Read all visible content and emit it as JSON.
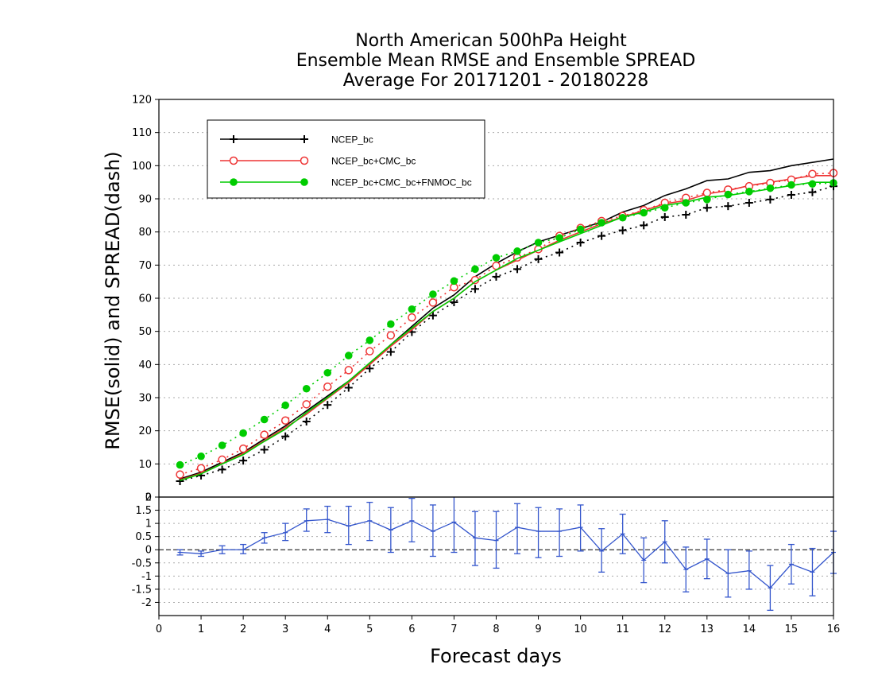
{
  "title_lines": [
    "North American 500hPa Height",
    "Ensemble Mean RMSE and Ensemble SPREAD",
    "Average For 20171201 - 20180228"
  ],
  "chart_data": [
    {
      "type": "line",
      "panel": "top",
      "xlabel": "Forecast days",
      "ylabel": "RMSE(solid) and SPREAD(dash)",
      "xlim": [
        0,
        16
      ],
      "ylim": [
        0,
        120
      ],
      "x_ticks": [
        0,
        1,
        2,
        3,
        4,
        5,
        6,
        7,
        8,
        9,
        10,
        11,
        12,
        13,
        14,
        15,
        16
      ],
      "y_ticks": [
        0,
        10,
        20,
        30,
        40,
        50,
        60,
        70,
        80,
        90,
        100,
        110,
        120
      ],
      "grid": "horizontal dotted",
      "legend_position": "top-left",
      "x": [
        0.5,
        1,
        1.5,
        2,
        2.5,
        3,
        3.5,
        4,
        4.5,
        5,
        5.5,
        6,
        6.5,
        7,
        7.5,
        8,
        8.5,
        9,
        9.5,
        10,
        10.5,
        11,
        11.5,
        12,
        12.5,
        13,
        13.5,
        14,
        14.5,
        15,
        15.5,
        16
      ],
      "series": [
        {
          "name": "NCEP_bc",
          "color": "#000000",
          "marker": "plus",
          "rmse": [
            5.5,
            7.5,
            10.5,
            13.5,
            17.5,
            21.5,
            26,
            30.5,
            35,
            40,
            46,
            51.5,
            57,
            61,
            66.5,
            70.5,
            74,
            77,
            79,
            81,
            83,
            86,
            88,
            91,
            93,
            95.5,
            96,
            98,
            98.5,
            100,
            101,
            102
          ],
          "spread": [
            4.8,
            6.5,
            8.3,
            11,
            14.3,
            18.3,
            22.8,
            27.8,
            33,
            38.8,
            43.8,
            49.8,
            54.8,
            58.8,
            62.8,
            66.5,
            68.8,
            71.8,
            73.8,
            76.8,
            78.8,
            80.5,
            82,
            84.5,
            85.2,
            87.3,
            87.8,
            88.8,
            89.8,
            91.2,
            92,
            93.8
          ]
        },
        {
          "name": "NCEP_bc+CMC_bc",
          "color": "#ee3333",
          "marker": "open-circle",
          "rmse": [
            5.2,
            7.2,
            10,
            13.2,
            17,
            21,
            25,
            29.8,
            34.5,
            40,
            45.5,
            50.5,
            56,
            60,
            65,
            68.5,
            71.5,
            74.5,
            77.5,
            80,
            82.5,
            84.5,
            86.5,
            88.5,
            89.5,
            91.5,
            92.5,
            94,
            95,
            96,
            97,
            97
          ],
          "spread": [
            6.8,
            8.7,
            11.3,
            14.6,
            18.8,
            23.1,
            28,
            33.3,
            38.3,
            44,
            48.8,
            54.2,
            58.7,
            63.3,
            65.5,
            69.8,
            72.3,
            74.8,
            78.8,
            81.2,
            83.3,
            84.8,
            86.6,
            88.8,
            90.3,
            91.8,
            92.8,
            93.8,
            94.8,
            95.8,
            97.5,
            97.8
          ]
        },
        {
          "name": "NCEP_bc+CMC_bc+FNMOC_bc",
          "color": "#00cc00",
          "marker": "filled-circle",
          "rmse": [
            5,
            7,
            10,
            12.8,
            16.8,
            20.5,
            25.5,
            30,
            35,
            40.5,
            46,
            51,
            56,
            60,
            65,
            68.5,
            72,
            74.5,
            77,
            79.5,
            82,
            84.5,
            86,
            88,
            89,
            90.5,
            91,
            92,
            93,
            94,
            95,
            95
          ],
          "spread": [
            9.7,
            12.3,
            15.6,
            19.3,
            23.4,
            27.7,
            32.7,
            37.5,
            42.7,
            47.3,
            52.2,
            56.7,
            61.2,
            65.2,
            68.8,
            72.2,
            74.2,
            76.8,
            78.2,
            80.8,
            82.8,
            84.3,
            85.8,
            87.3,
            88.8,
            89.8,
            91.3,
            92.2,
            93.2,
            94.2,
            94.5,
            94.8
          ]
        }
      ]
    },
    {
      "type": "line",
      "panel": "bottom",
      "description": "RMSE difference with error bars",
      "xlim": [
        0,
        16
      ],
      "ylim": [
        -2.5,
        2
      ],
      "y_ticks": [
        -2,
        -1.5,
        -1,
        -0.5,
        0,
        0.5,
        1,
        1.5,
        2
      ],
      "y_tick_labels": [
        "-2",
        "-1.5",
        "-1",
        "-0.5",
        "0",
        "0.5",
        "1",
        "1.5",
        "2"
      ],
      "zero_line": "dashed",
      "color": "#3355cc",
      "x": [
        0.5,
        1,
        1.5,
        2,
        2.5,
        3,
        3.5,
        4,
        4.5,
        5,
        5.5,
        6,
        6.5,
        7,
        7.5,
        8,
        8.5,
        9,
        9.5,
        10,
        10.5,
        11,
        11.5,
        12,
        12.5,
        13,
        13.5,
        14,
        14.5,
        15,
        15.5,
        16
      ],
      "values": [
        -0.1,
        -0.15,
        0,
        0,
        0.45,
        0.65,
        1.1,
        1.15,
        0.9,
        1.1,
        0.75,
        1.1,
        0.7,
        1.05,
        0.45,
        0.35,
        0.85,
        0.7,
        0.7,
        0.85,
        -0.05,
        0.6,
        -0.4,
        0.3,
        -0.75,
        -0.35,
        -0.9,
        -0.8,
        -1.45,
        -0.55,
        -0.85,
        -0.1
      ],
      "err_low": [
        -0.2,
        -0.25,
        -0.15,
        -0.15,
        0.25,
        0.35,
        0.7,
        0.65,
        0.2,
        0.35,
        -0.1,
        0.3,
        -0.25,
        -0.1,
        -0.6,
        -0.7,
        -0.15,
        -0.3,
        -0.25,
        -0.05,
        -0.85,
        -0.15,
        -1.25,
        -0.5,
        -1.6,
        -1.1,
        -1.8,
        -1.5,
        -2.3,
        -1.3,
        -1.75,
        -0.9
      ],
      "err_high": [
        0,
        -0.05,
        0.15,
        0.2,
        0.65,
        1,
        1.55,
        1.65,
        1.65,
        1.8,
        1.6,
        1.95,
        1.7,
        2.1,
        1.45,
        1.45,
        1.75,
        1.6,
        1.55,
        1.7,
        0.8,
        1.35,
        0.45,
        1.1,
        0.1,
        0.4,
        0,
        -0.05,
        -0.6,
        0.2,
        0.05,
        0.7
      ]
    }
  ]
}
